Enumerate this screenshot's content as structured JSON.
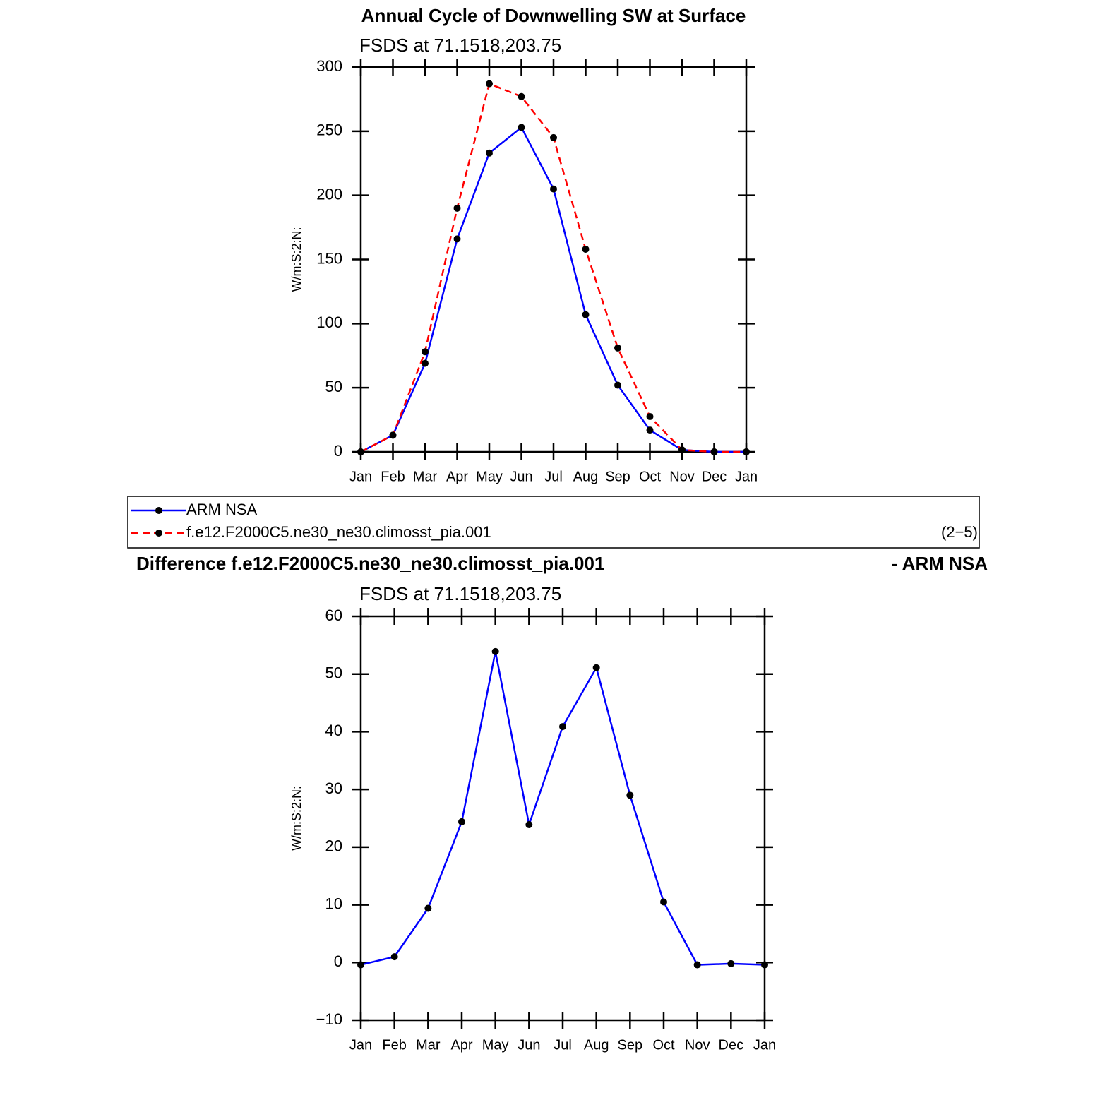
{
  "chart_data": [
    {
      "type": "line",
      "title": "Annual Cycle of Downwelling SW at Surface",
      "subtitle": "FSDS at 71.1518,203.75",
      "y_label": "W/m:S:2:N:",
      "categories": [
        "Jan",
        "Feb",
        "Mar",
        "Apr",
        "May",
        "Jun",
        "Jul",
        "Aug",
        "Sep",
        "Oct",
        "Nov",
        "Dec",
        "Jan"
      ],
      "series": [
        {
          "name": "ARM NSA",
          "color": "#0000ff",
          "style": "solid",
          "values": [
            0,
            13,
            69,
            166,
            233,
            253,
            205,
            107,
            52,
            17,
            1.5,
            0,
            0
          ]
        },
        {
          "name": "f.e12.F2000C5.ne30_ne30.climosst_pia.001",
          "color": "#ff0000",
          "style": "dashed",
          "values": [
            0,
            13,
            78,
            190,
            287,
            277,
            245,
            158,
            81,
            27.5,
            1.5,
            0,
            0
          ]
        }
      ],
      "annotation": "(2−5)",
      "markers": true,
      "ylim": [
        0,
        300
      ],
      "yticks": [
        0,
        50,
        100,
        150,
        200,
        250,
        300
      ]
    },
    {
      "type": "line",
      "title": "Difference f.e12.F2000C5.ne30_ne30.climosst_pia.001",
      "title_right": "- ARM NSA",
      "subtitle": "FSDS at 71.1518,203.75",
      "y_label": "W/m:S:2:N:",
      "categories": [
        "Jan",
        "Feb",
        "Mar",
        "Apr",
        "May",
        "Jun",
        "Jul",
        "Aug",
        "Sep",
        "Oct",
        "Nov",
        "Dec",
        "Jan"
      ],
      "series": [
        {
          "color": "#0000ff",
          "style": "solid",
          "values": [
            -0.4,
            1.0,
            9.4,
            24.4,
            53.9,
            23.9,
            40.9,
            51.1,
            29.0,
            10.5,
            -0.4,
            -0.2,
            -0.4
          ]
        }
      ],
      "markers": true,
      "ylim": [
        -10,
        60
      ],
      "yticks": [
        {
          "value": -10,
          "label": "−10"
        },
        0,
        10,
        20,
        30,
        40,
        50,
        60
      ]
    }
  ]
}
